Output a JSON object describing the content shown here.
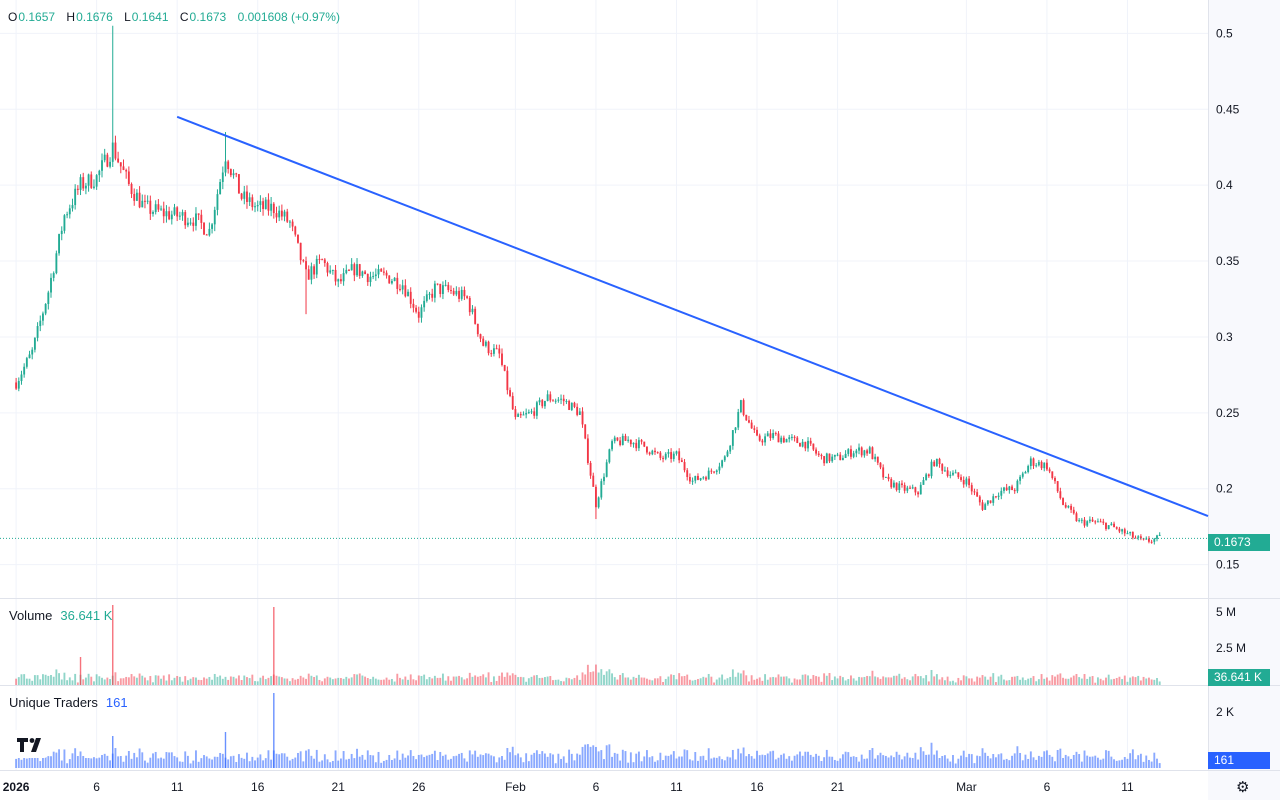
{
  "header": {
    "o_label": "O",
    "o_value": "0.1657",
    "h_label": "H",
    "h_value": "0.1676",
    "l_label": "L",
    "l_value": "0.1641",
    "c_label": "C",
    "c_value": "0.1673",
    "change": "0.001608 (+0.97%)"
  },
  "volume_pane": {
    "label": "Volume",
    "value": "36.641 K",
    "ticks": [
      "5 M",
      "2.5 M"
    ],
    "badge": "36.641 K"
  },
  "traders_pane": {
    "label": "Unique Traders",
    "value": "161",
    "ticks": [
      "2 K"
    ],
    "badge": "161"
  },
  "price_badge": "0.1673",
  "colors": {
    "up": "#22ab94",
    "down": "#f23645",
    "trendline": "#2962ff",
    "traders": "#2962ff",
    "grid": "#f0f3fa"
  },
  "icons": {
    "logo": "tradingview-logo-icon",
    "settings": "gear-icon"
  },
  "chart_data": {
    "type": "candlestick",
    "y_ticks": [
      0.5,
      0.45,
      0.4,
      0.35,
      0.3,
      0.25,
      0.2,
      0.15
    ],
    "y_tick_labels": [
      "0.5",
      "0.45",
      "0.4",
      "0.35",
      "0.3",
      "0.25",
      "0.2",
      "0.15"
    ],
    "x_ticks": [
      {
        "date": "2026-01-01",
        "label": "2026"
      },
      {
        "date": "2026-01-06",
        "label": "6"
      },
      {
        "date": "2026-01-11",
        "label": "11"
      },
      {
        "date": "2026-01-16",
        "label": "16"
      },
      {
        "date": "2026-01-21",
        "label": "21"
      },
      {
        "date": "2026-01-26",
        "label": "26"
      },
      {
        "date": "2026-02-01",
        "label": "Feb"
      },
      {
        "date": "2026-02-06",
        "label": "6"
      },
      {
        "date": "2026-02-11",
        "label": "11"
      },
      {
        "date": "2026-02-16",
        "label": "16"
      },
      {
        "date": "2026-02-21",
        "label": "21"
      },
      {
        "date": "2026-03-01",
        "label": "Mar"
      },
      {
        "date": "2026-03-06",
        "label": "6"
      },
      {
        "date": "2026-03-11",
        "label": "11"
      }
    ],
    "x_range": [
      "2025-12-31",
      "2026-03-16"
    ],
    "y_range": [
      0.128,
      0.522
    ],
    "last_price": 0.1673,
    "trendline": [
      {
        "date": "2026-01-11",
        "price": 0.445
      },
      {
        "date": "2026-03-16",
        "price": 0.182
      }
    ],
    "price_path": [
      [
        "2026-01-01",
        0.27
      ],
      [
        "2026-01-02",
        0.29
      ],
      [
        "2026-01-03",
        0.33
      ],
      [
        "2026-01-04",
        0.38
      ],
      [
        "2026-01-05",
        0.4
      ],
      [
        "2026-01-06",
        0.405
      ],
      [
        "2026-01-07",
        0.425
      ],
      [
        "2026-01-08",
        0.4
      ],
      [
        "2026-01-09",
        0.385
      ],
      [
        "2026-01-10",
        0.382
      ],
      [
        "2026-01-11",
        0.38
      ],
      [
        "2026-01-12",
        0.378
      ],
      [
        "2026-01-13",
        0.37
      ],
      [
        "2026-01-14",
        0.42
      ],
      [
        "2026-01-15",
        0.392
      ],
      [
        "2026-01-16",
        0.385
      ],
      [
        "2026-01-17",
        0.385
      ],
      [
        "2026-01-18",
        0.375
      ],
      [
        "2026-01-19",
        0.34
      ],
      [
        "2026-01-20",
        0.35
      ],
      [
        "2026-01-21",
        0.335
      ],
      [
        "2026-01-22",
        0.345
      ],
      [
        "2026-01-23",
        0.34
      ],
      [
        "2026-01-24",
        0.34
      ],
      [
        "2026-01-25",
        0.335
      ],
      [
        "2026-01-26",
        0.315
      ],
      [
        "2026-01-27",
        0.332
      ],
      [
        "2026-01-28",
        0.33
      ],
      [
        "2026-01-29",
        0.325
      ],
      [
        "2026-01-30",
        0.295
      ],
      [
        "2026-01-31",
        0.288
      ],
      [
        "2026-02-01",
        0.245
      ],
      [
        "2026-02-02",
        0.25
      ],
      [
        "2026-02-03",
        0.26
      ],
      [
        "2026-02-04",
        0.258
      ],
      [
        "2026-02-05",
        0.25
      ],
      [
        "2026-02-06",
        0.19
      ],
      [
        "2026-02-07",
        0.23
      ],
      [
        "2026-02-08",
        0.232
      ],
      [
        "2026-02-09",
        0.228
      ],
      [
        "2026-02-10",
        0.22
      ],
      [
        "2026-02-11",
        0.222
      ],
      [
        "2026-02-12",
        0.205
      ],
      [
        "2026-02-13",
        0.21
      ],
      [
        "2026-02-14",
        0.22
      ],
      [
        "2026-02-15",
        0.255
      ],
      [
        "2026-02-16",
        0.232
      ],
      [
        "2026-02-17",
        0.235
      ],
      [
        "2026-02-18",
        0.232
      ],
      [
        "2026-02-19",
        0.23
      ],
      [
        "2026-02-20",
        0.22
      ],
      [
        "2026-02-21",
        0.22
      ],
      [
        "2026-02-22",
        0.225
      ],
      [
        "2026-02-23",
        0.225
      ],
      [
        "2026-02-24",
        0.205
      ],
      [
        "2026-02-25",
        0.2
      ],
      [
        "2026-02-26",
        0.198
      ],
      [
        "2026-02-27",
        0.218
      ],
      [
        "2026-02-28",
        0.21
      ],
      [
        "2026-03-01",
        0.205
      ],
      [
        "2026-03-02",
        0.188
      ],
      [
        "2026-03-03",
        0.198
      ],
      [
        "2026-03-04",
        0.2
      ],
      [
        "2026-03-05",
        0.218
      ],
      [
        "2026-03-06",
        0.215
      ],
      [
        "2026-03-07",
        0.19
      ],
      [
        "2026-03-08",
        0.178
      ],
      [
        "2026-03-09",
        0.178
      ],
      [
        "2026-03-10",
        0.175
      ],
      [
        "2026-03-11",
        0.17
      ],
      [
        "2026-03-12",
        0.165
      ],
      [
        "2026-03-13",
        0.1673
      ]
    ],
    "spikes": [
      {
        "date": "2026-01-07",
        "high": 0.505
      },
      {
        "date": "2026-02-06",
        "low": 0.18
      },
      {
        "date": "2026-01-14",
        "high": 0.435
      },
      {
        "date": "2026-01-19",
        "low": 0.315
      }
    ]
  }
}
